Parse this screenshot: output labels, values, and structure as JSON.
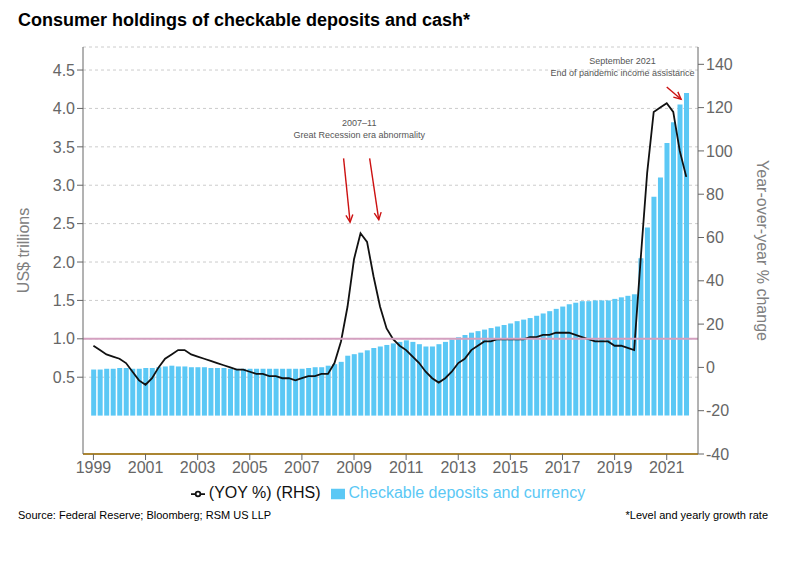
{
  "chart_data": {
    "type": "bar",
    "title": "Consumer holdings of checkable deposits and cash*",
    "source": "Source: Federal Reserve; Bloomberg; RSM US LLP",
    "note": "*Level and yearly growth rate",
    "ylabel": "US$ trillions",
    "y2label": "Year-over-year % change",
    "x": [
      1999.0,
      1999.25,
      1999.5,
      1999.75,
      2000.0,
      2000.25,
      2000.5,
      2000.75,
      2001.0,
      2001.25,
      2001.5,
      2001.75,
      2002.0,
      2002.25,
      2002.5,
      2002.75,
      2003.0,
      2003.25,
      2003.5,
      2003.75,
      2004.0,
      2004.25,
      2004.5,
      2004.75,
      2005.0,
      2005.25,
      2005.5,
      2005.75,
      2006.0,
      2006.25,
      2006.5,
      2006.75,
      2007.0,
      2007.25,
      2007.5,
      2007.75,
      2008.0,
      2008.25,
      2008.5,
      2008.75,
      2009.0,
      2009.25,
      2009.5,
      2009.75,
      2010.0,
      2010.25,
      2010.5,
      2010.75,
      2011.0,
      2011.25,
      2011.5,
      2011.75,
      2012.0,
      2012.25,
      2012.5,
      2012.75,
      2013.0,
      2013.25,
      2013.5,
      2013.75,
      2014.0,
      2014.25,
      2014.5,
      2014.75,
      2015.0,
      2015.25,
      2015.5,
      2015.75,
      2016.0,
      2016.25,
      2016.5,
      2016.75,
      2017.0,
      2017.25,
      2017.5,
      2017.75,
      2018.0,
      2018.25,
      2018.5,
      2018.75,
      2019.0,
      2019.25,
      2019.5,
      2019.75,
      2020.0,
      2020.25,
      2020.5,
      2020.75,
      2021.0,
      2021.25,
      2021.5,
      2021.75
    ],
    "series": [
      {
        "name": "Checkable deposits and currency",
        "type": "bar",
        "color": "#5BC8F5",
        "values": [
          0.6,
          0.6,
          0.61,
          0.61,
          0.62,
          0.62,
          0.61,
          0.61,
          0.62,
          0.62,
          0.63,
          0.64,
          0.65,
          0.64,
          0.64,
          0.63,
          0.63,
          0.63,
          0.62,
          0.62,
          0.62,
          0.61,
          0.61,
          0.61,
          0.61,
          0.61,
          0.61,
          0.61,
          0.61,
          0.61,
          0.61,
          0.61,
          0.61,
          0.62,
          0.63,
          0.63,
          0.65,
          0.67,
          0.7,
          0.78,
          0.8,
          0.82,
          0.85,
          0.88,
          0.9,
          0.92,
          0.94,
          0.96,
          0.98,
          0.96,
          0.93,
          0.9,
          0.9,
          0.93,
          0.96,
          0.99,
          1.02,
          1.05,
          1.08,
          1.1,
          1.12,
          1.14,
          1.16,
          1.18,
          1.2,
          1.23,
          1.25,
          1.27,
          1.3,
          1.33,
          1.36,
          1.39,
          1.42,
          1.45,
          1.47,
          1.49,
          1.49,
          1.5,
          1.5,
          1.5,
          1.52,
          1.54,
          1.56,
          1.58,
          2.05,
          2.45,
          2.85,
          3.1,
          3.55,
          3.82,
          4.05,
          4.2
        ]
      },
      {
        "name": "(YOY %) (RHS)",
        "type": "line",
        "axis": "y2",
        "color": "#111111",
        "values": [
          10,
          8,
          6,
          5,
          4,
          2,
          -2,
          -6,
          -8,
          -5,
          0,
          4,
          6,
          8,
          8,
          6,
          5,
          4,
          3,
          2,
          1,
          0,
          -1,
          -1,
          -2,
          -3,
          -3,
          -4,
          -4,
          -5,
          -5,
          -6,
          -5,
          -4,
          -4,
          -3,
          -3,
          2,
          12,
          28,
          50,
          62,
          58,
          42,
          28,
          18,
          13,
          10,
          8,
          5,
          2,
          -2,
          -5,
          -7,
          -5,
          -2,
          2,
          4,
          8,
          10,
          12,
          12,
          13,
          13,
          13,
          13,
          13,
          14,
          14,
          15,
          15,
          16,
          16,
          16,
          15,
          14,
          13,
          12,
          12,
          12,
          10,
          10,
          9,
          8,
          50,
          90,
          118,
          120,
          122,
          118,
          100,
          88
        ]
      }
    ],
    "xlim": [
      1998.6,
      2022.2
    ],
    "xticks": [
      1999,
      2001,
      2003,
      2005,
      2007,
      2009,
      2011,
      2013,
      2015,
      2017,
      2019,
      2021
    ],
    "ylim": [
      -0.5,
      4.8
    ],
    "yticks": [
      0.5,
      {
        "value": 1,
        "label": "1.0"
      },
      1.5,
      {
        "value": 2,
        "label": "2.0"
      },
      2.5,
      {
        "value": 3,
        "label": "3.0"
      },
      3.5,
      {
        "value": 4,
        "label": "4.0"
      },
      4.5
    ],
    "y2lim": [
      -40,
      148
    ],
    "y2ticks": [
      -40,
      -20,
      0,
      20,
      40,
      60,
      80,
      100,
      120,
      140
    ],
    "grid": true,
    "legend": "bottom",
    "reference_lines": [
      {
        "y": 1.0,
        "axis": "y",
        "color": "#D4A0C0"
      },
      {
        "y": -40,
        "axis": "y2",
        "color": "#F0A500"
      }
    ],
    "annotations": [
      {
        "text": "2007–11\nGreat Recession era abnormality",
        "x": 2009.2,
        "y": 3.58,
        "color": "#CC1111",
        "arrows": [
          {
            "from": [
              2008.6,
              3.35
            ],
            "to": [
              2008.85,
              2.52
            ]
          },
          {
            "from": [
              2009.6,
              3.35
            ],
            "to": [
              2009.95,
              2.55
            ]
          }
        ]
      },
      {
        "text": "September 2021\nEnd of pandemic income assistance",
        "x": 2019.3,
        "y": 4.38,
        "color": "#CC1111",
        "arrows": [
          {
            "from": [
              2021.0,
              4.28
            ],
            "to": [
              2021.55,
              4.12
            ]
          }
        ]
      }
    ]
  }
}
